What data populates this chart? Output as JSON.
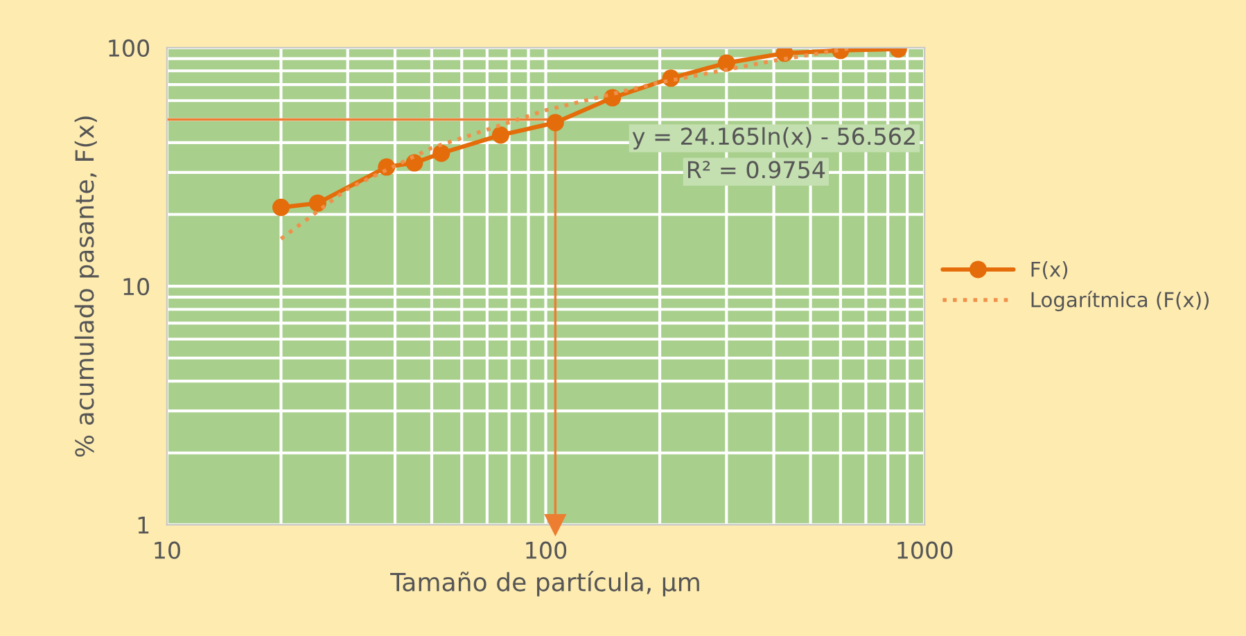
{
  "chart_data": {
    "type": "line",
    "xlabel": "Tamaño de partícula, µm",
    "ylabel": "% acumulado pasante, F(x)",
    "log": "xy",
    "xlim": [
      10,
      1000
    ],
    "ylim": [
      1,
      100
    ],
    "xticks": [
      10,
      100,
      1000
    ],
    "yticks": [
      1,
      10,
      100
    ],
    "grid": true,
    "legend": "right",
    "series": [
      {
        "name": "F(x)",
        "color": "#e46c0a",
        "marker": "circle",
        "line_style": "solid",
        "x": [
          20,
          25,
          38,
          45,
          53,
          76,
          106,
          150,
          214,
          300,
          427,
          600,
          853
        ],
        "values": [
          21.4,
          22.3,
          31.6,
          32.9,
          36.1,
          43,
          48.5,
          61.7,
          74.5,
          86.3,
          94.8,
          97.4,
          98.7
        ]
      },
      {
        "name": "Logarítmica (F(x))",
        "color": "#f0904a",
        "marker": "none",
        "line_style": "dotted",
        "x": [
          20,
          30,
          50,
          100,
          200,
          400,
          650
        ],
        "values": [
          15.8,
          25.6,
          38.0,
          54.7,
          71.5,
          88.2,
          100.0
        ]
      }
    ],
    "ref_lines": [
      {
        "axis": "y",
        "value": 50,
        "color": "#ed7d31"
      },
      {
        "axis": "x",
        "value": 106,
        "color": "#ed7d31"
      }
    ],
    "annotations": [
      "y = 24.165ln(x) - 56.562",
      "R² = 0.9754"
    ]
  }
}
